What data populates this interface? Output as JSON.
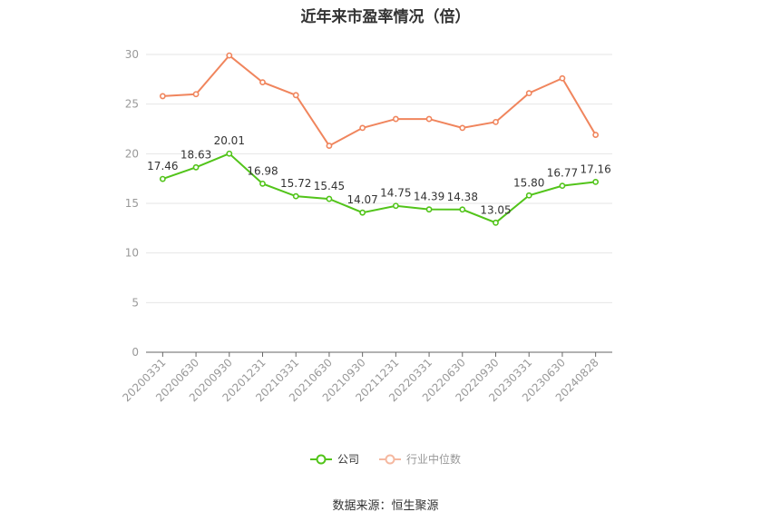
{
  "chart_data": {
    "type": "line",
    "title": "近年来市盈率情况（倍）",
    "categories": [
      "20200331",
      "20200630",
      "20200930",
      "20201231",
      "20210331",
      "20210630",
      "20210930",
      "20211231",
      "20220331",
      "20220630",
      "20220930",
      "20230331",
      "20230630",
      "20240828"
    ],
    "series": [
      {
        "name": "公司",
        "color": "#52c41a",
        "values": [
          17.46,
          18.63,
          20.01,
          16.98,
          15.72,
          15.45,
          14.07,
          14.75,
          14.39,
          14.38,
          13.05,
          15.8,
          16.77,
          17.16
        ],
        "value_labels": [
          "17.46",
          "18.63",
          "20.01",
          "16.98",
          "15.72",
          "15.45",
          "14.07",
          "14.75",
          "14.39",
          "14.38",
          "13.05",
          "15.80",
          "16.77",
          "17.16"
        ]
      },
      {
        "name": "行业中位数",
        "color": "#f0855d",
        "values": [
          25.8,
          26.0,
          29.9,
          27.2,
          25.9,
          20.8,
          22.6,
          23.5,
          23.5,
          22.6,
          23.2,
          26.1,
          27.6,
          21.9
        ]
      }
    ],
    "ylim": [
      0,
      30
    ],
    "yticks": [
      "0",
      "5",
      "10",
      "15",
      "20",
      "25",
      "30"
    ],
    "grid": true,
    "legend_position": "bottom-center",
    "source": "数据来源：恒生聚源"
  }
}
